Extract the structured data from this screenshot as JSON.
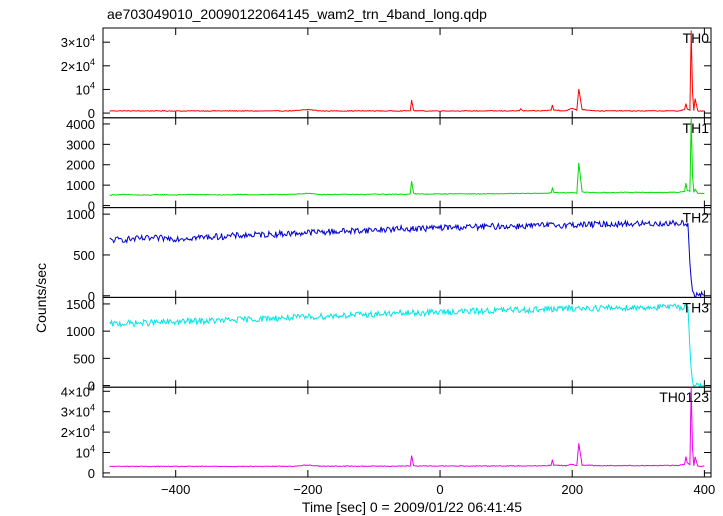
{
  "chart_data": {
    "type": "line",
    "title": "ae703049010_20090122064145_wam2_trn_4band_long.qdp",
    "xlabel": "Time [sec] 0 = 2009/01/22 06:41:45",
    "ylabel": "Counts/sec",
    "xlim": [
      -510,
      410
    ],
    "x_ticks": [
      {
        "value": -400,
        "label": "−400"
      },
      {
        "value": -200,
        "label": "−200"
      },
      {
        "value": 0,
        "label": "0"
      },
      {
        "value": 200,
        "label": "200"
      },
      {
        "value": 400,
        "label": "400"
      }
    ],
    "grid": false,
    "panels": [
      {
        "name": "TH0",
        "color": "#ff0000",
        "ylim": [
          -2000,
          36000
        ],
        "y_ticks": [
          {
            "value": 0,
            "mant": "0",
            "exp": ""
          },
          {
            "value": 10000,
            "mant": "10",
            "exp": "4"
          },
          {
            "value": 20000,
            "mant": "2×10",
            "exp": "4"
          },
          {
            "value": 30000,
            "mant": "3×10",
            "exp": "4"
          }
        ],
        "x": [
          -500,
          -480,
          -450,
          -420,
          -400,
          -380,
          -350,
          -320,
          -300,
          -280,
          -250,
          -220,
          -200,
          -180,
          -150,
          -120,
          -100,
          -80,
          -50,
          -45,
          -43,
          -40,
          -38,
          -20,
          0,
          30,
          60,
          90,
          120,
          122,
          125,
          150,
          168,
          170,
          172,
          190,
          200,
          205,
          207,
          210,
          215,
          240,
          270,
          300,
          330,
          360,
          370,
          372,
          374,
          378,
          380,
          382,
          384,
          386,
          390,
          400
        ],
        "values": [
          900,
          950,
          900,
          920,
          880,
          900,
          920,
          900,
          910,
          880,
          900,
          950,
          1500,
          900,
          920,
          900,
          910,
          900,
          950,
          1000,
          5500,
          1200,
          950,
          900,
          920,
          900,
          910,
          900,
          950,
          1800,
          950,
          920,
          1200,
          3400,
          1300,
          950,
          2000,
          1500,
          1200,
          10300,
          1500,
          900,
          950,
          900,
          920,
          900,
          1500,
          4000,
          1800,
          1200,
          35000,
          9000,
          1000,
          6000,
          900,
          900
        ]
      },
      {
        "name": "TH1",
        "color": "#00dd00",
        "ylim": [
          -100,
          4300
        ],
        "y_ticks": [
          {
            "value": 0,
            "mant": "0",
            "exp": ""
          },
          {
            "value": 1000,
            "mant": "1000",
            "exp": ""
          },
          {
            "value": 2000,
            "mant": "2000",
            "exp": ""
          },
          {
            "value": 3000,
            "mant": "3000",
            "exp": ""
          },
          {
            "value": 4000,
            "mant": "4000",
            "exp": ""
          }
        ],
        "x": [
          -500,
          -480,
          -450,
          -420,
          -400,
          -380,
          -350,
          -320,
          -300,
          -280,
          -250,
          -220,
          -200,
          -180,
          -150,
          -120,
          -100,
          -80,
          -50,
          -45,
          -43,
          -40,
          -38,
          -20,
          0,
          30,
          60,
          90,
          120,
          150,
          168,
          170,
          172,
          190,
          200,
          205,
          207,
          210,
          215,
          240,
          270,
          300,
          330,
          360,
          370,
          372,
          374,
          378,
          380,
          382,
          384,
          386,
          390,
          400
        ],
        "values": [
          520,
          540,
          510,
          530,
          520,
          540,
          530,
          520,
          540,
          530,
          540,
          550,
          600,
          540,
          550,
          540,
          560,
          550,
          560,
          580,
          1200,
          620,
          570,
          560,
          570,
          580,
          570,
          580,
          590,
          600,
          620,
          850,
          640,
          620,
          650,
          620,
          600,
          2100,
          660,
          630,
          640,
          650,
          640,
          650,
          700,
          1100,
          750,
          700,
          4300,
          1500,
          650,
          800,
          600,
          600
        ]
      },
      {
        "name": "TH2",
        "color": "#0000cc",
        "ylim": [
          -20,
          1080
        ],
        "y_ticks": [
          {
            "value": 0,
            "mant": "0",
            "exp": ""
          },
          {
            "value": 500,
            "mant": "500",
            "exp": ""
          },
          {
            "value": 1000,
            "mant": "1000",
            "exp": ""
          }
        ],
        "x": [
          -500,
          -480,
          -450,
          -420,
          -400,
          -380,
          -350,
          -320,
          -300,
          -280,
          -250,
          -220,
          -200,
          -180,
          -150,
          -120,
          -100,
          -80,
          -50,
          -20,
          0,
          30,
          60,
          90,
          120,
          150,
          180,
          210,
          240,
          270,
          300,
          330,
          360,
          375,
          378,
          380,
          382,
          384,
          390,
          400
        ],
        "values": [
          680,
          690,
          700,
          705,
          700,
          710,
          720,
          730,
          740,
          745,
          755,
          765,
          775,
          780,
          790,
          800,
          805,
          815,
          820,
          825,
          835,
          840,
          845,
          850,
          855,
          860,
          865,
          870,
          875,
          880,
          882,
          885,
          888,
          890,
          400,
          200,
          60,
          20,
          10,
          10
        ]
      },
      {
        "name": "TH3",
        "color": "#00e5e5",
        "ylim": [
          -30,
          1620
        ],
        "y_ticks": [
          {
            "value": 0,
            "mant": "0",
            "exp": ""
          },
          {
            "value": 500,
            "mant": "500",
            "exp": ""
          },
          {
            "value": 1000,
            "mant": "1000",
            "exp": ""
          },
          {
            "value": 1500,
            "mant": "1500",
            "exp": ""
          }
        ],
        "x": [
          -500,
          -480,
          -450,
          -420,
          -400,
          -380,
          -350,
          -320,
          -300,
          -280,
          -250,
          -220,
          -200,
          -180,
          -150,
          -120,
          -100,
          -80,
          -50,
          -20,
          0,
          30,
          60,
          90,
          120,
          150,
          180,
          210,
          240,
          270,
          300,
          330,
          360,
          375,
          378,
          380,
          382,
          384,
          390,
          400
        ],
        "values": [
          1130,
          1140,
          1150,
          1160,
          1170,
          1180,
          1190,
          1200,
          1210,
          1220,
          1240,
          1250,
          1260,
          1270,
          1290,
          1300,
          1310,
          1320,
          1330,
          1340,
          1350,
          1360,
          1370,
          1380,
          1390,
          1400,
          1410,
          1420,
          1425,
          1430,
          1435,
          1440,
          1445,
          1450,
          700,
          300,
          80,
          20,
          10,
          10
        ]
      },
      {
        "name": "TH0123",
        "color": "#ee00ee",
        "ylim": [
          -2000,
          42000
        ],
        "y_ticks": [
          {
            "value": 0,
            "mant": "0",
            "exp": ""
          },
          {
            "value": 10000,
            "mant": "10",
            "exp": "4"
          },
          {
            "value": 20000,
            "mant": "2×10",
            "exp": "4"
          },
          {
            "value": 30000,
            "mant": "3×10",
            "exp": "4"
          },
          {
            "value": 40000,
            "mant": "4×10",
            "exp": "4"
          }
        ],
        "x": [
          -500,
          -480,
          -450,
          -420,
          -400,
          -380,
          -350,
          -320,
          -300,
          -280,
          -250,
          -220,
          -200,
          -180,
          -150,
          -120,
          -100,
          -80,
          -50,
          -45,
          -43,
          -40,
          -38,
          -20,
          0,
          30,
          60,
          90,
          120,
          150,
          168,
          170,
          172,
          190,
          200,
          205,
          207,
          210,
          215,
          240,
          270,
          300,
          330,
          360,
          370,
          372,
          374,
          378,
          380,
          382,
          384,
          386,
          390,
          400
        ],
        "values": [
          3200,
          3250,
          3200,
          3220,
          3180,
          3200,
          3220,
          3210,
          3230,
          3200,
          3250,
          3280,
          3900,
          3300,
          3320,
          3300,
          3330,
          3320,
          3350,
          3400,
          8500,
          3600,
          3400,
          3380,
          3400,
          3420,
          3400,
          3430,
          3450,
          3480,
          3700,
          6500,
          3800,
          3500,
          4200,
          3800,
          3600,
          14500,
          3900,
          3550,
          3600,
          3580,
          3600,
          3650,
          4200,
          8000,
          5000,
          4000,
          42000,
          12000,
          3500,
          8000,
          3300,
          3300
        ]
      }
    ]
  }
}
